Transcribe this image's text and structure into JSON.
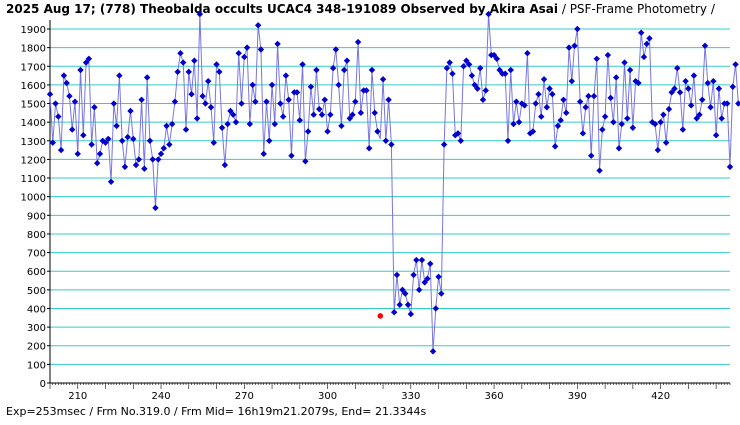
{
  "title": {
    "bold": "2025 Aug 17; (778) Theobalda occults UCAC4 348-191089 Observed by Akira Asai",
    "normal": " / PSF-Frame Photometry /"
  },
  "footer": "Exp=253msec / Frm No.319.0 / Frm Mid= 16h19m21.2079s, End= 21.3344s",
  "colors": {
    "grid": "#33cccc",
    "series": "#0000cc",
    "line": "#7777dd",
    "highlight": "#ff0000"
  },
  "chart_data": {
    "type": "line",
    "title": "2025 Aug 17; (778) Theobalda occults UCAC4 348-191089 Observed by Akira Asai / PSF-Frame Photometry /",
    "xlabel": "",
    "ylabel": "",
    "xlim": [
      200,
      445
    ],
    "ylim": [
      0,
      1900
    ],
    "x_ticks": [
      210,
      240,
      270,
      300,
      330,
      360,
      390,
      420
    ],
    "y_ticks": [
      0,
      100,
      200,
      300,
      400,
      500,
      600,
      700,
      800,
      900,
      1000,
      1100,
      1200,
      1300,
      1400,
      1500,
      1600,
      1700,
      1800,
      1900
    ],
    "grid": true,
    "x_start": 200,
    "x_step": 1,
    "highlight": {
      "x": 319,
      "y": 360
    },
    "values": [
      1550,
      1290,
      1500,
      1430,
      1250,
      1650,
      1610,
      1540,
      1360,
      1510,
      1230,
      1680,
      1330,
      1720,
      1740,
      1280,
      1480,
      1180,
      1230,
      1300,
      1290,
      1310,
      1080,
      1500,
      1380,
      1650,
      1300,
      1160,
      1320,
      1460,
      1310,
      1170,
      1200,
      1520,
      1150,
      1640,
      1300,
      1200,
      940,
      1200,
      1230,
      1260,
      1380,
      1280,
      1390,
      1510,
      1670,
      1770,
      1720,
      1360,
      1670,
      1550,
      1730,
      1420,
      1980,
      1540,
      1500,
      1620,
      1480,
      1290,
      1710,
      1670,
      1370,
      1170,
      1390,
      1460,
      1440,
      1400,
      1770,
      1500,
      1750,
      1800,
      1390,
      1600,
      1510,
      1920,
      1790,
      1230,
      1510,
      1300,
      1600,
      1390,
      1820,
      1500,
      1430,
      1650,
      1520,
      1220,
      1560,
      1560,
      1410,
      1710,
      1190,
      1350,
      1590,
      1440,
      1680,
      1470,
      1440,
      1520,
      1350,
      1440,
      1690,
      1790,
      1600,
      1380,
      1680,
      1730,
      1420,
      1440,
      1510,
      1830,
      1450,
      1570,
      1570,
      1260,
      1680,
      1450,
      1350,
      1310,
      1630,
      1300,
      1520,
      1280,
      380,
      580,
      420,
      500,
      480,
      420,
      370,
      580,
      660,
      500,
      660,
      540,
      560,
      640,
      170,
      400,
      570,
      480,
      1280,
      1690,
      1720,
      1660,
      1330,
      1340,
      1300,
      1700,
      1730,
      1710,
      1650,
      1600,
      1580,
      1690,
      1520,
      1570,
      1980,
      1760,
      1760,
      1740,
      1680,
      1660,
      1660,
      1300,
      1680,
      1390,
      1510,
      1400,
      1500,
      1490,
      1770,
      1340,
      1350,
      1500,
      1550,
      1430,
      1630,
      1480,
      1580,
      1550,
      1270,
      1380,
      1410,
      1520,
      1450,
      1800,
      1620,
      1810,
      1900,
      1510,
      1340,
      1480,
      1540,
      1220,
      1540,
      1740,
      1140,
      1360,
      1430,
      1760,
      1530,
      1400,
      1640,
      1260,
      1390,
      1720,
      1420,
      1680,
      1370,
      1620,
      1610,
      1880,
      1750,
      1820,
      1850,
      1400,
      1390,
      1250,
      1400,
      1440,
      1290,
      1470,
      1560,
      1580,
      1690,
      1560,
      1360,
      1620,
      1580,
      1490,
      1650,
      1420,
      1440,
      1520,
      1810,
      1610,
      1480,
      1620,
      1330,
      1580,
      1420,
      1500,
      1500,
      1160,
      1590,
      1710,
      1500
    ]
  }
}
